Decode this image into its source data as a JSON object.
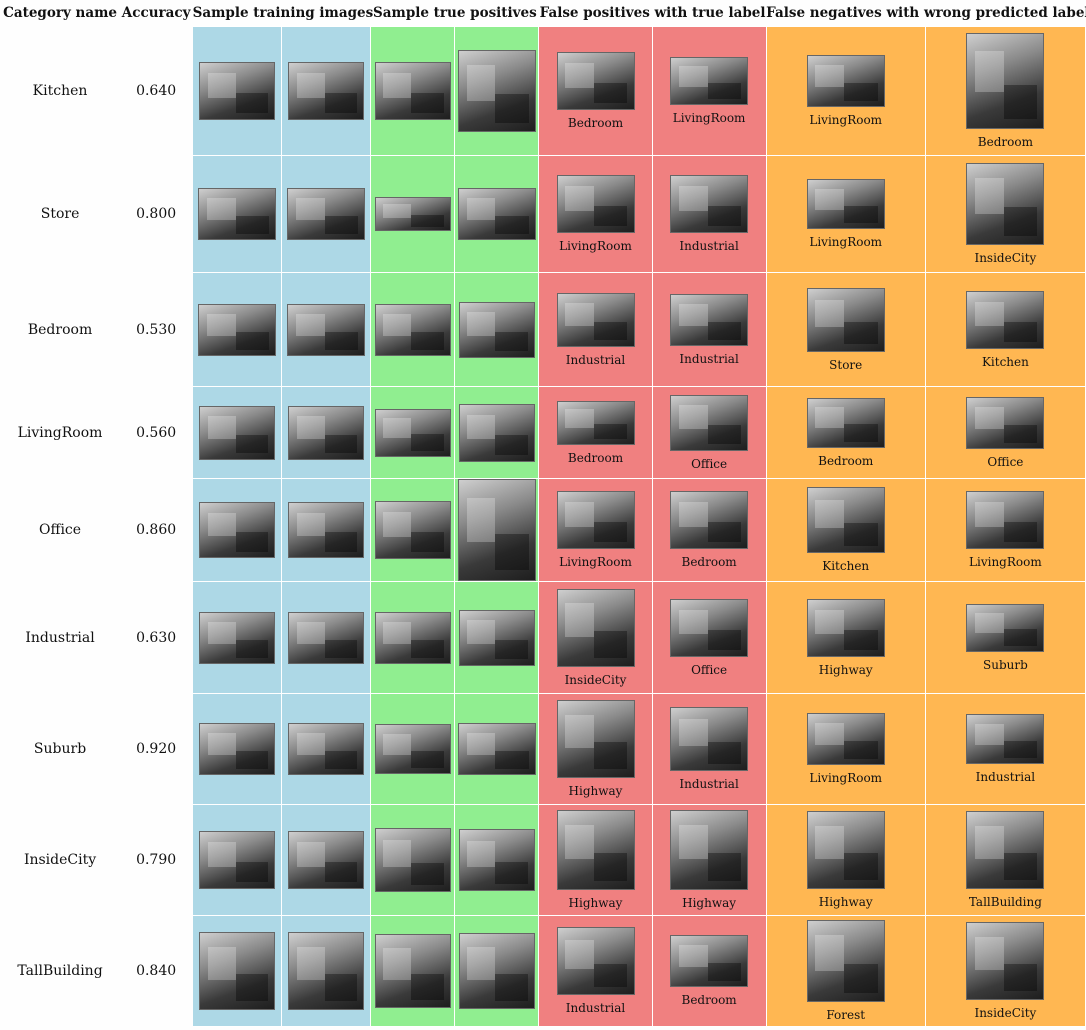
{
  "headers": {
    "category": "Category name",
    "accuracy": "Accuracy",
    "training": "Sample training images",
    "true_positives": "Sample true positives",
    "false_positives": "False positives with true label",
    "false_negatives": "False negatives with wrong predicted label"
  },
  "colors": {
    "training": "#add8e6",
    "true_positives": "#90ee90",
    "false_positives": "#f08080",
    "false_negatives": "#ffb752"
  },
  "rows": [
    {
      "name": "Kitchen",
      "accuracy": "0.640",
      "fp": [
        "Bedroom",
        "LivingRoom"
      ],
      "fn": [
        "LivingRoom",
        "Bedroom"
      ]
    },
    {
      "name": "Store",
      "accuracy": "0.800",
      "fp": [
        "LivingRoom",
        "Industrial"
      ],
      "fn": [
        "LivingRoom",
        "InsideCity"
      ]
    },
    {
      "name": "Bedroom",
      "accuracy": "0.530",
      "fp": [
        "Industrial",
        "Industrial"
      ],
      "fn": [
        "Store",
        "Kitchen"
      ]
    },
    {
      "name": "LivingRoom",
      "accuracy": "0.560",
      "fp": [
        "Bedroom",
        "Office"
      ],
      "fn": [
        "Bedroom",
        "Office"
      ]
    },
    {
      "name": "Office",
      "accuracy": "0.860",
      "fp": [
        "LivingRoom",
        "Bedroom"
      ],
      "fn": [
        "Kitchen",
        "LivingRoom"
      ]
    },
    {
      "name": "Industrial",
      "accuracy": "0.630",
      "fp": [
        "InsideCity",
        "Office"
      ],
      "fn": [
        "Highway",
        "Suburb"
      ]
    },
    {
      "name": "Suburb",
      "accuracy": "0.920",
      "fp": [
        "Highway",
        "Industrial"
      ],
      "fn": [
        "LivingRoom",
        "Industrial"
      ]
    },
    {
      "name": "InsideCity",
      "accuracy": "0.790",
      "fp": [
        "Highway",
        "Highway"
      ],
      "fn": [
        "Highway",
        "TallBuilding"
      ]
    },
    {
      "name": "TallBuilding",
      "accuracy": "0.840",
      "fp": [
        "Industrial",
        "Bedroom"
      ],
      "fn": [
        "Forest",
        "InsideCity"
      ]
    }
  ]
}
